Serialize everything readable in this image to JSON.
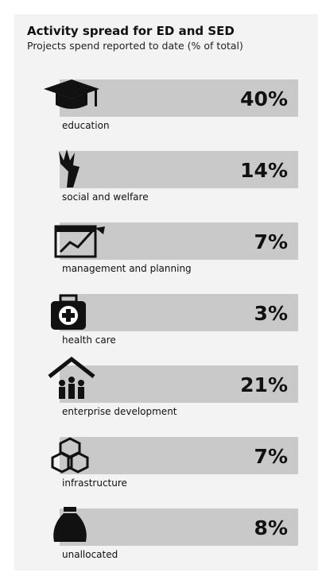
{
  "header": {
    "title": "Activity spread for ED and SED",
    "subtitle": "Projects spend reported to date (% of total)"
  },
  "items": [
    {
      "label": "education",
      "value": "40%"
    },
    {
      "label": "social and welfare",
      "value": "14%"
    },
    {
      "label": "management and planning",
      "value": "7%"
    },
    {
      "label": "health care",
      "value": "3%"
    },
    {
      "label": "enterprise development",
      "value": "21%"
    },
    {
      "label": "infrastructure",
      "value": "7%"
    },
    {
      "label": "unallocated",
      "value": "8%"
    }
  ]
}
